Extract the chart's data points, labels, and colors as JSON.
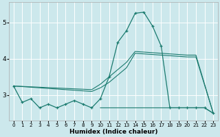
{
  "title": "",
  "xlabel": "Humidex (Indice chaleur)",
  "ylabel": "",
  "background_color": "#cce8ec",
  "grid_color": "#ffffff",
  "line_color": "#1a7a6e",
  "xlim": [
    -0.5,
    23.5
  ],
  "ylim": [
    2.3,
    5.55
  ],
  "yticks": [
    3,
    4,
    5
  ],
  "xticks": [
    0,
    1,
    2,
    3,
    4,
    5,
    6,
    7,
    8,
    9,
    10,
    11,
    12,
    13,
    14,
    15,
    16,
    17,
    18,
    19,
    20,
    21,
    22,
    23
  ],
  "series1_x": [
    0,
    1,
    2,
    3,
    4,
    5,
    6,
    7,
    8,
    9,
    10,
    11,
    12,
    13,
    14,
    15,
    16,
    17,
    18,
    19,
    20,
    21,
    22,
    23
  ],
  "series1_y": [
    3.25,
    2.8,
    2.9,
    2.65,
    2.75,
    2.65,
    2.75,
    2.85,
    2.75,
    2.65,
    2.9,
    3.5,
    4.45,
    4.77,
    5.25,
    5.28,
    4.9,
    4.35,
    2.65,
    2.65,
    2.65,
    2.65,
    2.65,
    2.5
  ],
  "series2_x": [
    0,
    9,
    10,
    11,
    12,
    13,
    14,
    20,
    21,
    23
  ],
  "series2_y": [
    3.25,
    3.1,
    3.2,
    3.35,
    3.55,
    3.75,
    4.15,
    4.05,
    4.05,
    2.5
  ],
  "series3_x": [
    0,
    9,
    10,
    11,
    12,
    13,
    14,
    20,
    21,
    23
  ],
  "series3_y": [
    3.25,
    3.15,
    3.3,
    3.5,
    3.7,
    3.9,
    4.2,
    4.1,
    4.1,
    2.5
  ],
  "series4_x": [
    10,
    11,
    12,
    13,
    14,
    15,
    16,
    17,
    18,
    19,
    20,
    21,
    22,
    23
  ],
  "series4_y": [
    2.65,
    2.65,
    2.65,
    2.65,
    2.65,
    2.65,
    2.65,
    2.65,
    2.65,
    2.65,
    2.65,
    2.65,
    2.65,
    2.5
  ]
}
